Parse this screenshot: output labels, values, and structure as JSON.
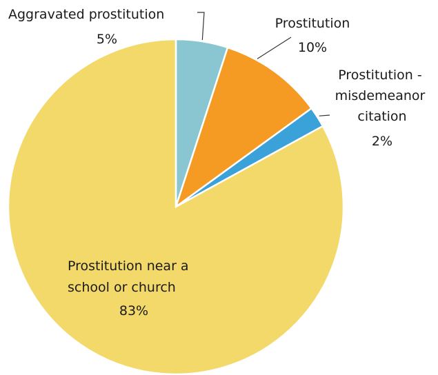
{
  "chart_data": {
    "type": "pie",
    "title": "",
    "slices": [
      {
        "name_lines": [
          "Aggravated prostitution"
        ],
        "value": 5,
        "value_label": "5%",
        "color": "#8ac6d1"
      },
      {
        "name_lines": [
          "Prostitution"
        ],
        "value": 10,
        "value_label": "10%",
        "color": "#f59a23"
      },
      {
        "name_lines": [
          "Prostitution -",
          "misdemeanor",
          "citation"
        ],
        "value": 2,
        "value_label": "2%",
        "color": "#3aa2d8"
      },
      {
        "name_lines": [
          "Prostitution near a",
          "school or church"
        ],
        "value": 83,
        "value_label": "83%",
        "color": "#f3d86a"
      }
    ]
  }
}
